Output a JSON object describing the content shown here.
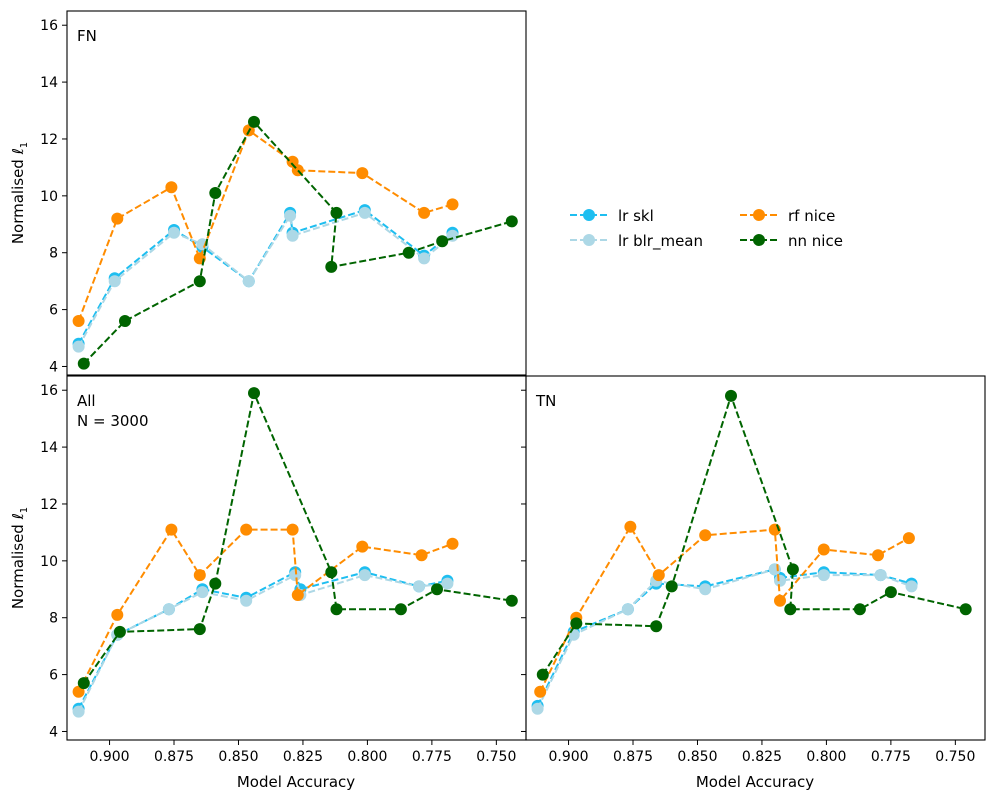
{
  "chart_data": {
    "type": "line",
    "xlabel": "Model Accuracy",
    "ylabel": "Normalised ℓ",
    "ylabel_subscript": "1",
    "x_ticks": [
      "0.900",
      "0.875",
      "0.850",
      "0.825",
      "0.800",
      "0.775",
      "0.750"
    ],
    "x_tick_values": [
      0.9,
      0.875,
      0.85,
      0.825,
      0.8,
      0.775,
      0.75
    ],
    "y_ticks": [
      "4",
      "6",
      "8",
      "10",
      "12",
      "14",
      "16"
    ],
    "y_tick_values": [
      4,
      6,
      8,
      10,
      12,
      14,
      16
    ],
    "xlim": [
      0.9165,
      0.7385
    ],
    "ylim": [
      3.7,
      16.5
    ],
    "legend": [
      {
        "name": "lr skl",
        "color": "#1ebef0"
      },
      {
        "name": "lr blr_mean",
        "color": "#add8e6"
      },
      {
        "name": "rf nice",
        "color": "#ff8c00"
      },
      {
        "name": "nn nice",
        "color": "#006400"
      }
    ],
    "panels": [
      {
        "id": "FN",
        "label_lines": [
          "FN"
        ],
        "series": [
          {
            "name": "lr skl",
            "color": "#1ebef0",
            "x": [
              0.912,
              0.898,
              0.875,
              0.864,
              0.846,
              0.83,
              0.829,
              0.801,
              0.778,
              0.767
            ],
            "y": [
              4.8,
              7.1,
              8.8,
              8.2,
              7.0,
              9.4,
              8.7,
              9.5,
              7.9,
              8.7
            ]
          },
          {
            "name": "lr blr_mean",
            "color": "#add8e6",
            "x": [
              0.912,
              0.898,
              0.875,
              0.864,
              0.846,
              0.83,
              0.829,
              0.801,
              0.778,
              0.767
            ],
            "y": [
              4.7,
              7.0,
              8.7,
              8.3,
              7.0,
              9.3,
              8.6,
              9.4,
              7.8,
              8.6
            ]
          },
          {
            "name": "rf nice",
            "color": "#ff8c00",
            "x": [
              0.912,
              0.897,
              0.876,
              0.865,
              0.846,
              0.829,
              0.827,
              0.802,
              0.778,
              0.767
            ],
            "y": [
              5.6,
              9.2,
              10.3,
              7.8,
              12.3,
              11.2,
              10.9,
              10.8,
              9.4,
              9.7
            ]
          },
          {
            "name": "nn nice",
            "color": "#006400",
            "x": [
              0.91,
              0.894,
              0.865,
              0.859,
              0.844,
              0.812,
              0.814,
              0.784,
              0.771,
              0.744
            ],
            "y": [
              4.1,
              5.6,
              7.0,
              10.1,
              12.6,
              9.4,
              7.5,
              8.0,
              8.4,
              9.1
            ]
          }
        ]
      },
      {
        "id": "All",
        "label_lines": [
          "All",
          "N = 3000"
        ],
        "series": [
          {
            "name": "lr skl",
            "color": "#1ebef0",
            "x": [
              0.912,
              0.897,
              0.877,
              0.864,
              0.847,
              0.828,
              0.826,
              0.801,
              0.78,
              0.769
            ],
            "y": [
              4.8,
              7.4,
              8.3,
              9.0,
              8.7,
              9.6,
              9.0,
              9.6,
              9.1,
              9.3
            ]
          },
          {
            "name": "lr blr_mean",
            "color": "#add8e6",
            "x": [
              0.912,
              0.897,
              0.877,
              0.864,
              0.847,
              0.828,
              0.826,
              0.801,
              0.78,
              0.769
            ],
            "y": [
              4.7,
              7.4,
              8.3,
              8.9,
              8.6,
              9.5,
              8.8,
              9.5,
              9.1,
              9.2
            ]
          },
          {
            "name": "rf nice",
            "color": "#ff8c00",
            "x": [
              0.912,
              0.897,
              0.876,
              0.865,
              0.847,
              0.829,
              0.827,
              0.802,
              0.779,
              0.767
            ],
            "y": [
              5.4,
              8.1,
              11.1,
              9.5,
              11.1,
              11.1,
              8.8,
              10.5,
              10.2,
              10.6
            ]
          },
          {
            "name": "nn nice",
            "color": "#006400",
            "x": [
              0.91,
              0.896,
              0.865,
              0.859,
              0.844,
              0.814,
              0.812,
              0.787,
              0.773,
              0.744
            ],
            "y": [
              5.7,
              7.5,
              7.6,
              9.2,
              15.9,
              9.6,
              8.3,
              8.3,
              9.0,
              8.6
            ]
          }
        ]
      },
      {
        "id": "TN",
        "label_lines": [
          "TN"
        ],
        "series": [
          {
            "name": "lr skl",
            "color": "#1ebef0",
            "x": [
              0.912,
              0.898,
              0.877,
              0.866,
              0.847,
              0.82,
              0.818,
              0.801,
              0.779,
              0.767
            ],
            "y": [
              4.9,
              7.5,
              8.3,
              9.2,
              9.1,
              9.7,
              9.4,
              9.6,
              9.5,
              9.2
            ]
          },
          {
            "name": "lr blr_mean",
            "color": "#add8e6",
            "x": [
              0.912,
              0.898,
              0.877,
              0.866,
              0.847,
              0.82,
              0.818,
              0.801,
              0.779,
              0.767
            ],
            "y": [
              4.8,
              7.4,
              8.3,
              9.3,
              9.0,
              9.7,
              9.3,
              9.5,
              9.5,
              9.1
            ]
          },
          {
            "name": "rf nice",
            "color": "#ff8c00",
            "x": [
              0.911,
              0.897,
              0.876,
              0.865,
              0.847,
              0.82,
              0.818,
              0.801,
              0.78,
              0.768
            ],
            "y": [
              5.4,
              8.0,
              11.2,
              9.5,
              10.9,
              11.1,
              8.6,
              10.4,
              10.2,
              10.8
            ]
          },
          {
            "name": "nn nice",
            "color": "#006400",
            "x": [
              0.91,
              0.897,
              0.866,
              0.86,
              0.837,
              0.813,
              0.814,
              0.787,
              0.775,
              0.746
            ],
            "y": [
              6.0,
              7.8,
              7.7,
              9.1,
              15.8,
              9.7,
              8.3,
              8.3,
              8.9,
              8.3
            ]
          }
        ]
      }
    ]
  }
}
